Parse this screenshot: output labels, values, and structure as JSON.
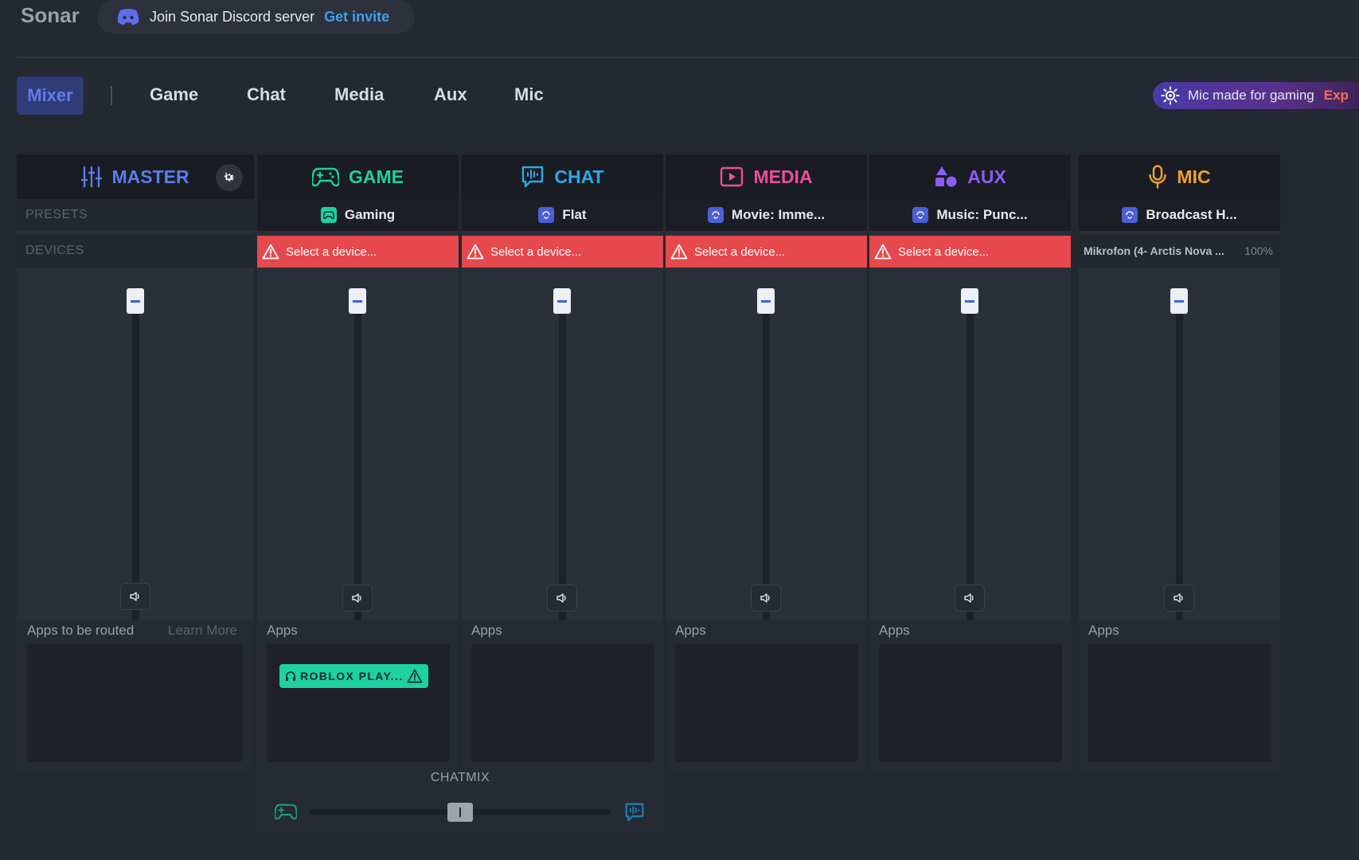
{
  "app": {
    "title": "Sonar"
  },
  "discord": {
    "text": "Join Sonar Discord server",
    "link": "Get invite"
  },
  "tabs": [
    {
      "label": "Mixer",
      "active": true
    },
    {
      "label": "Game"
    },
    {
      "label": "Chat"
    },
    {
      "label": "Media"
    },
    {
      "label": "Aux"
    },
    {
      "label": "Mic"
    }
  ],
  "promo": {
    "text": "Mic made for gaming",
    "cta": "Exp"
  },
  "colors": {
    "master": "#5d7cf0",
    "game": "#1dd1a1",
    "chat": "#2ba9e8",
    "media": "#ef4e9a",
    "aux": "#8b5cf6",
    "mic": "#f0a030",
    "warning": "#e5484d"
  },
  "master": {
    "title": "MASTER",
    "presets_label": "PRESETS",
    "devices_label": "DEVICES",
    "apps_label": "Apps to be routed",
    "learn_more": "Learn More",
    "icon": "sliders-icon"
  },
  "channels": [
    {
      "key": "game",
      "title": "GAME",
      "icon": "gamepad-icon",
      "preset": "Gaming",
      "device": "Select a device...",
      "apps_label": "Apps",
      "apps": [
        {
          "name": "ROBLOX PLAY..."
        }
      ]
    },
    {
      "key": "chat",
      "title": "CHAT",
      "icon": "chat-icon",
      "preset": "Flat",
      "device": "Select a device...",
      "apps_label": "Apps",
      "apps": []
    },
    {
      "key": "media",
      "title": "MEDIA",
      "icon": "play-icon",
      "preset": "Movie: Imme...",
      "device": "Select a device...",
      "apps_label": "Apps",
      "apps": []
    },
    {
      "key": "aux",
      "title": "AUX",
      "icon": "shapes-icon",
      "preset": "Music: Punc...",
      "device": "Select a device...",
      "apps_label": "Apps",
      "apps": []
    },
    {
      "key": "mic",
      "title": "MIC",
      "icon": "microphone-icon",
      "preset": "Broadcast H...",
      "device": "Mikrofon (4- Arctis Nova ...",
      "device_level": "100%",
      "apps_label": "Apps",
      "apps": []
    }
  ],
  "chatmix": {
    "label": "CHATMIX",
    "balance": 0.5
  }
}
